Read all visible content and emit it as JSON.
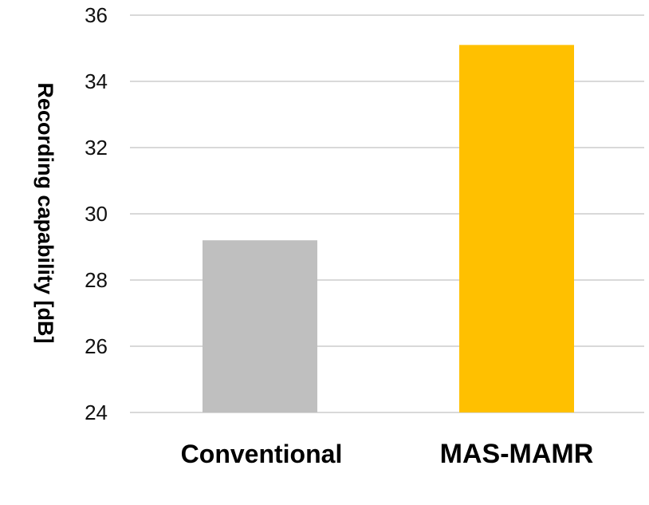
{
  "chart_data": {
    "type": "bar",
    "title": "",
    "xlabel": "",
    "ylabel": "Recording capability [dB]",
    "categories": [
      "Conventional",
      "MAS-MAMR"
    ],
    "values": [
      29.2,
      35.1
    ],
    "colors": [
      "#bfbfbf",
      "#ffc000"
    ],
    "ylim": [
      24,
      36
    ],
    "yticks": [
      24,
      26,
      28,
      30,
      32,
      34,
      36
    ],
    "grid": true,
    "gridColor": "#d9d9d9"
  }
}
